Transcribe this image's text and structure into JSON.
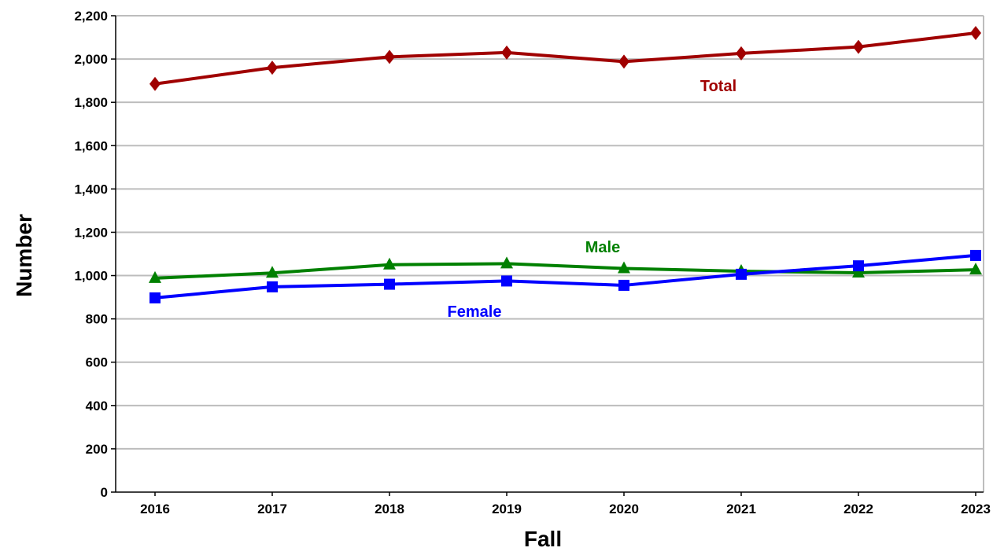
{
  "chart_data": {
    "type": "line",
    "title": "",
    "xlabel": "Fall",
    "ylabel": "Number",
    "categories": [
      "2016",
      "2017",
      "2018",
      "2019",
      "2020",
      "2021",
      "2022",
      "2023"
    ],
    "ylim": [
      0,
      2200
    ],
    "yticks": [
      0,
      200,
      400,
      600,
      800,
      1000,
      1200,
      1400,
      1600,
      1800,
      2000,
      2200
    ],
    "ytick_labels": [
      "0",
      "200",
      "400",
      "600",
      "800",
      "1,000",
      "1,200",
      "1,400",
      "1,600",
      "1,800",
      "2,000",
      "2,200"
    ],
    "grid": true,
    "series": [
      {
        "name": "Total",
        "color": "#A00000",
        "marker": "diamond",
        "values": [
          1885,
          1960,
          2010,
          2030,
          1988,
          2026,
          2056,
          2120
        ]
      },
      {
        "name": "Male",
        "color": "#008000",
        "marker": "triangle",
        "values": [
          988,
          1012,
          1050,
          1055,
          1033,
          1020,
          1013,
          1027
        ]
      },
      {
        "name": "Female",
        "color": "#0000FF",
        "marker": "square",
        "values": [
          897,
          948,
          960,
          975,
          955,
          1006,
          1045,
          1093
        ]
      }
    ]
  }
}
